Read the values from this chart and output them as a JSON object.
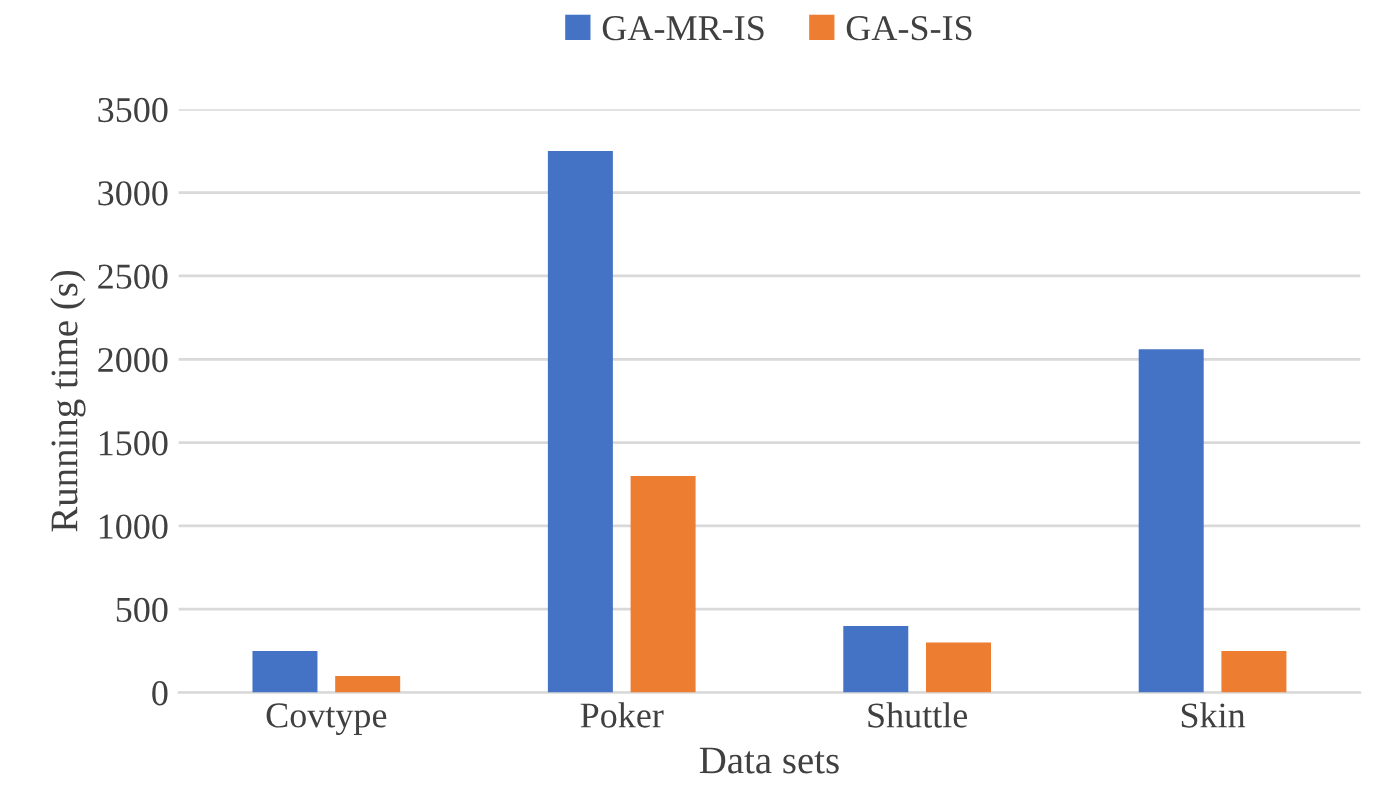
{
  "chart_data": {
    "type": "bar",
    "xlabel": "Data sets",
    "ylabel": "Running time (s)",
    "categories": [
      "Covtype",
      "Poker",
      "Shuttle",
      "Skin"
    ],
    "series": [
      {
        "name": "GA-MR-IS",
        "color": "#4472c4",
        "values": [
          250,
          3250,
          400,
          2060
        ]
      },
      {
        "name": "GA-S-IS",
        "color": "#ed7d31",
        "values": [
          100,
          1300,
          300,
          250
        ]
      }
    ],
    "ylim": [
      0,
      3500
    ],
    "yticks": [
      0,
      500,
      1000,
      1500,
      2000,
      2500,
      3000,
      3500
    ],
    "grid": "y",
    "legend": "top"
  }
}
